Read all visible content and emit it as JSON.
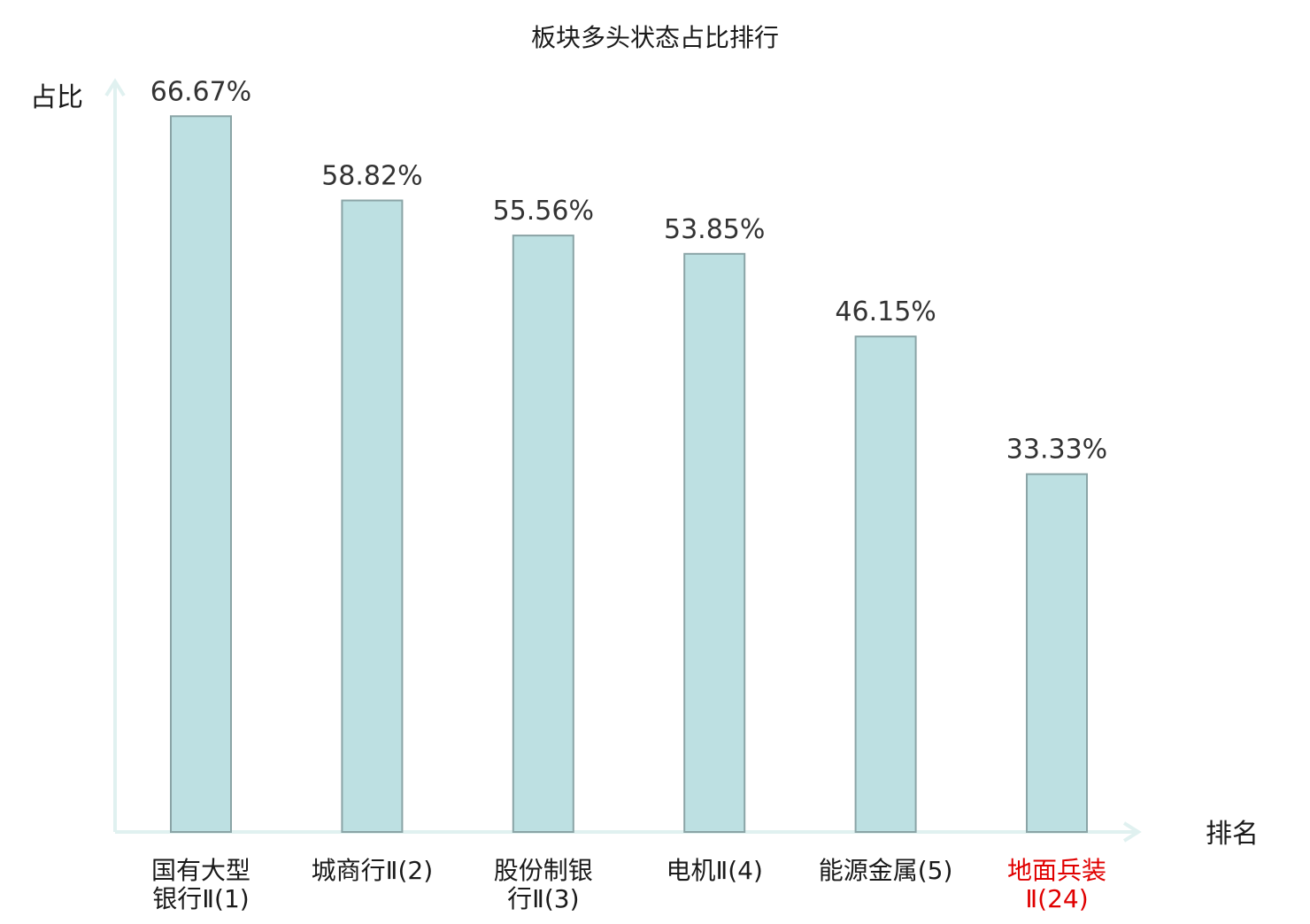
{
  "chart_data": {
    "type": "bar",
    "title": "板块多头状态占比排行",
    "ylabel": "占比",
    "xlabel": "排名",
    "categories": [
      [
        "国有大型",
        "银行Ⅱ(1)"
      ],
      [
        "城商行Ⅱ(2)"
      ],
      [
        "股份制银",
        "行Ⅱ(3)"
      ],
      [
        "电机Ⅱ(4)"
      ],
      [
        "能源金属(5)"
      ],
      [
        "地面兵装",
        "Ⅱ(24)"
      ]
    ],
    "values": [
      66.67,
      58.82,
      55.56,
      53.85,
      46.15,
      33.33
    ],
    "value_labels": [
      "66.67%",
      "58.82%",
      "55.56%",
      "53.85%",
      "46.15%",
      "33.33%"
    ],
    "highlight_index": 5,
    "ylim": [
      0,
      100
    ],
    "grid": false,
    "colors": {
      "bar_fill": "#bde0e2",
      "bar_stroke": "#8aa4a6",
      "axis": "#e0f1f0",
      "text": "#333333",
      "label": "#1a1a1a",
      "highlight": "#e00000"
    }
  }
}
